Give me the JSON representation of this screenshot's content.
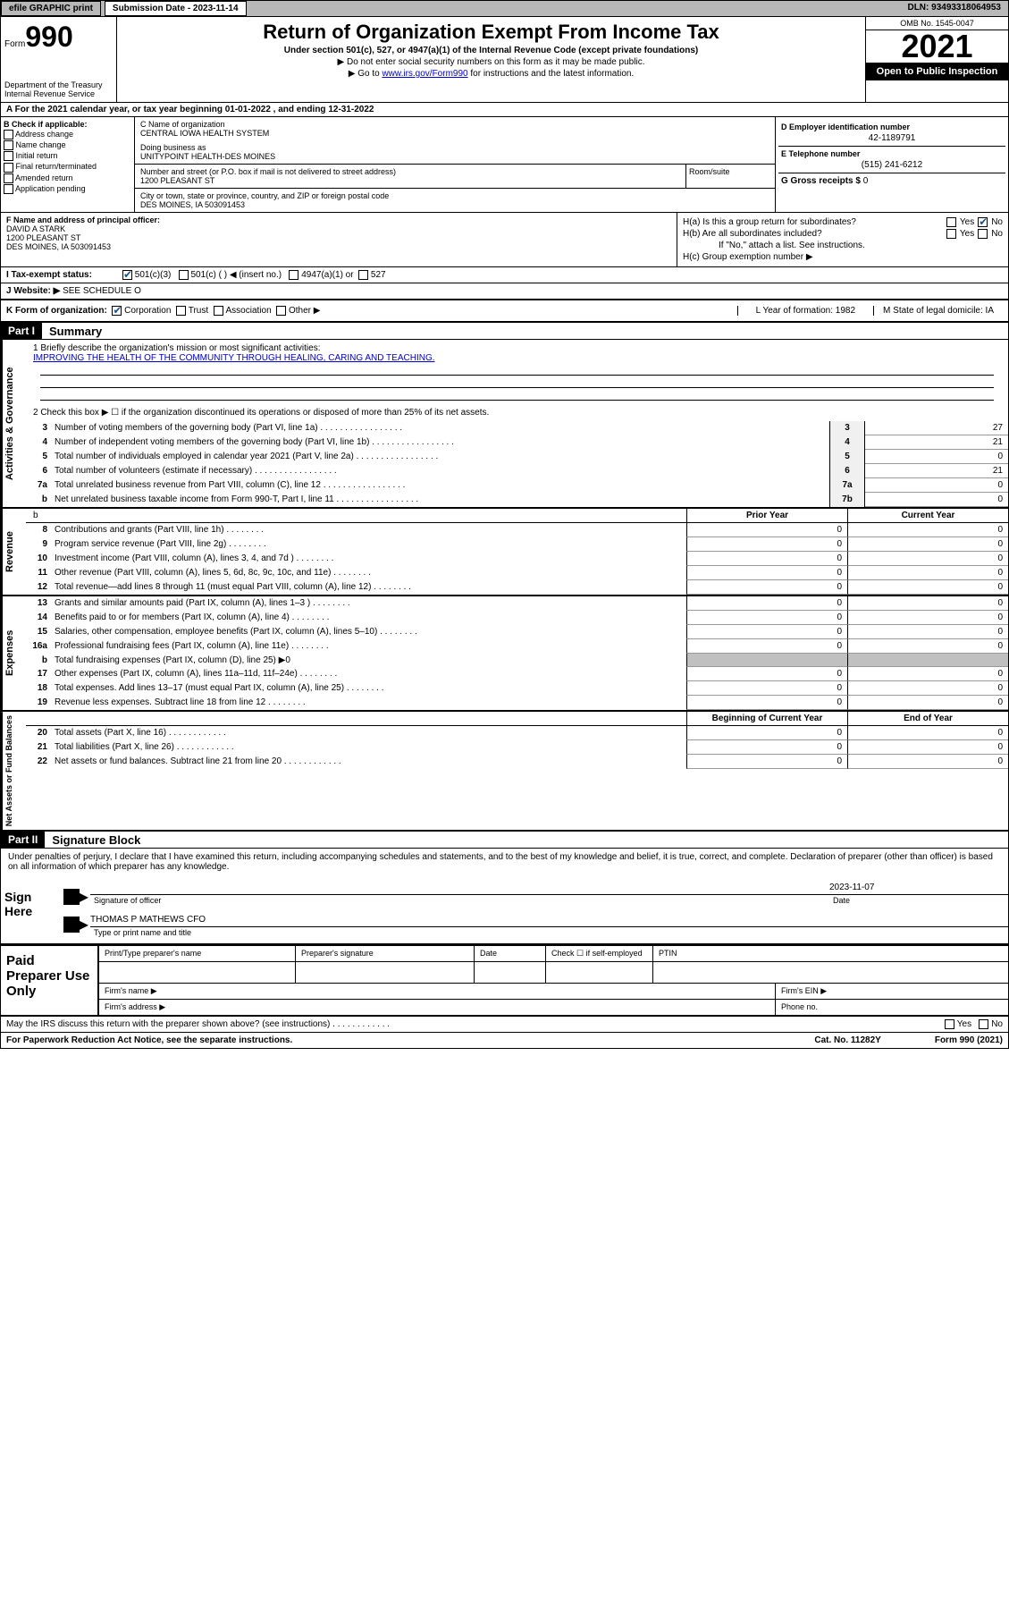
{
  "topbar": {
    "efile": "efile GRAPHIC print",
    "submission": "Submission Date - 2023-11-14",
    "dln": "DLN: 93493318064953"
  },
  "header": {
    "form_prefix": "Form",
    "form_num": "990",
    "dept": "Department of the Treasury",
    "irs": "Internal Revenue Service",
    "title": "Return of Organization Exempt From Income Tax",
    "sub1": "Under section 501(c), 527, or 4947(a)(1) of the Internal Revenue Code (except private foundations)",
    "sub2": "▶ Do not enter social security numbers on this form as it may be made public.",
    "sub3_pre": "▶ Go to ",
    "sub3_link": "www.irs.gov/Form990",
    "sub3_post": " for instructions and the latest information.",
    "omb": "OMB No. 1545-0047",
    "year": "2021",
    "open": "Open to Public Inspection"
  },
  "taxyear": "A For the 2021 calendar year, or tax year beginning 01-01-2022    , and ending 12-31-2022",
  "boxB": {
    "title": "B Check if applicable:",
    "items": [
      "Address change",
      "Name change",
      "Initial return",
      "Final return/terminated",
      "Amended return",
      "Application pending"
    ]
  },
  "boxC": {
    "name_label": "C Name of organization",
    "name": "CENTRAL IOWA HEALTH SYSTEM",
    "dba_label": "Doing business as",
    "dba": "UNITYPOINT HEALTH-DES MOINES",
    "addr_label": "Number and street (or P.O. box if mail is not delivered to street address)",
    "addr": "1200 PLEASANT ST",
    "room_label": "Room/suite",
    "city_label": "City or town, state or province, country, and ZIP or foreign postal code",
    "city": "DES MOINES, IA  503091453"
  },
  "boxD": {
    "label": "D Employer identification number",
    "ein": "42-1189791",
    "phone_label": "E Telephone number",
    "phone": "(515) 241-6212",
    "gross_label": "G Gross receipts $",
    "gross": "0"
  },
  "boxF": {
    "label": "F Name and address of principal officer:",
    "name": "DAVID A STARK",
    "addr1": "1200 PLEASANT ST",
    "addr2": "DES MOINES, IA  503091453"
  },
  "boxH": {
    "ha": "H(a)  Is this a group return for subordinates?",
    "hb": "H(b)  Are all subordinates included?",
    "hb_note": "If \"No,\" attach a list. See instructions.",
    "hc": "H(c)  Group exemption number ▶"
  },
  "rowI": {
    "label": "I   Tax-exempt status:",
    "opt1": "501(c)(3)",
    "opt2": "501(c) (   ) ◀ (insert no.)",
    "opt3": "4947(a)(1) or",
    "opt4": "527"
  },
  "rowJ": {
    "label": "J   Website: ▶",
    "val": "SEE SCHEDULE O"
  },
  "rowK": {
    "label": "K Form of organization:",
    "corp": "Corporation",
    "trust": "Trust",
    "assoc": "Association",
    "other": "Other ▶",
    "L": "L Year of formation: 1982",
    "M": "M State of legal domicile: IA"
  },
  "part1": {
    "header": "Part I",
    "title": "Summary",
    "line1_label": "1   Briefly describe the organization's mission or most significant activities:",
    "line1_text": "IMPROVING THE HEALTH OF THE COMMUNITY THROUGH HEALING, CARING AND TEACHING.",
    "line2": "2    Check this box ▶ ☐  if the organization discontinued its operations or disposed of more than 25% of its net assets.",
    "vert1": "Activities & Governance",
    "vert2": "Revenue",
    "vert3": "Expenses",
    "vert4": "Net Assets or Fund Balances",
    "prior": "Prior Year",
    "current": "Current Year",
    "begin": "Beginning of Current Year",
    "end": "End of Year"
  },
  "lines_gov": [
    {
      "n": "3",
      "d": "Number of voting members of the governing body (Part VI, line 1a)",
      "box": "3",
      "v": "27"
    },
    {
      "n": "4",
      "d": "Number of independent voting members of the governing body (Part VI, line 1b)",
      "box": "4",
      "v": "21"
    },
    {
      "n": "5",
      "d": "Total number of individuals employed in calendar year 2021 (Part V, line 2a)",
      "box": "5",
      "v": "0"
    },
    {
      "n": "6",
      "d": "Total number of volunteers (estimate if necessary)",
      "box": "6",
      "v": "21"
    },
    {
      "n": "7a",
      "d": "Total unrelated business revenue from Part VIII, column (C), line 12",
      "box": "7a",
      "v": "0"
    },
    {
      "n": "b",
      "d": "Net unrelated business taxable income from Form 990-T, Part I, line 11",
      "box": "7b",
      "v": "0"
    }
  ],
  "lines_rev": [
    {
      "n": "8",
      "d": "Contributions and grants (Part VIII, line 1h)",
      "v1": "0",
      "v2": "0"
    },
    {
      "n": "9",
      "d": "Program service revenue (Part VIII, line 2g)",
      "v1": "0",
      "v2": "0"
    },
    {
      "n": "10",
      "d": "Investment income (Part VIII, column (A), lines 3, 4, and 7d )",
      "v1": "0",
      "v2": "0"
    },
    {
      "n": "11",
      "d": "Other revenue (Part VIII, column (A), lines 5, 6d, 8c, 9c, 10c, and 11e)",
      "v1": "0",
      "v2": "0"
    },
    {
      "n": "12",
      "d": "Total revenue—add lines 8 through 11 (must equal Part VIII, column (A), line 12)",
      "v1": "0",
      "v2": "0"
    }
  ],
  "lines_exp": [
    {
      "n": "13",
      "d": "Grants and similar amounts paid (Part IX, column (A), lines 1–3 )",
      "v1": "0",
      "v2": "0"
    },
    {
      "n": "14",
      "d": "Benefits paid to or for members (Part IX, column (A), line 4)",
      "v1": "0",
      "v2": "0"
    },
    {
      "n": "15",
      "d": "Salaries, other compensation, employee benefits (Part IX, column (A), lines 5–10)",
      "v1": "0",
      "v2": "0"
    },
    {
      "n": "16a",
      "d": "Professional fundraising fees (Part IX, column (A), line 11e)",
      "v1": "0",
      "v2": "0"
    },
    {
      "n": "b",
      "d": "Total fundraising expenses (Part IX, column (D), line 25) ▶0",
      "v1": "",
      "v2": ""
    },
    {
      "n": "17",
      "d": "Other expenses (Part IX, column (A), lines 11a–11d, 11f–24e)",
      "v1": "0",
      "v2": "0"
    },
    {
      "n": "18",
      "d": "Total expenses. Add lines 13–17 (must equal Part IX, column (A), line 25)",
      "v1": "0",
      "v2": "0"
    },
    {
      "n": "19",
      "d": "Revenue less expenses. Subtract line 18 from line 12",
      "v1": "0",
      "v2": "0"
    }
  ],
  "lines_net": [
    {
      "n": "20",
      "d": "Total assets (Part X, line 16)",
      "v1": "0",
      "v2": "0"
    },
    {
      "n": "21",
      "d": "Total liabilities (Part X, line 26)",
      "v1": "0",
      "v2": "0"
    },
    {
      "n": "22",
      "d": "Net assets or fund balances. Subtract line 21 from line 20",
      "v1": "0",
      "v2": "0"
    }
  ],
  "part2": {
    "header": "Part II",
    "title": "Signature Block",
    "decl": "Under penalties of perjury, I declare that I have examined this return, including accompanying schedules and statements, and to the best of my knowledge and belief, it is true, correct, and complete. Declaration of preparer (other than officer) is based on all information of which preparer has any knowledge.",
    "sign_here": "Sign Here",
    "sig_officer": "Signature of officer",
    "sig_date": "2023-11-07",
    "date_lbl": "Date",
    "officer_name": "THOMAS P MATHEWS CFO",
    "type_name": "Type or print name and title"
  },
  "paid": {
    "label": "Paid Preparer Use Only",
    "h1": "Print/Type preparer's name",
    "h2": "Preparer's signature",
    "h3": "Date",
    "h4": "Check ☐ if self-employed",
    "h5": "PTIN",
    "firm_name": "Firm's name   ▶",
    "firm_ein": "Firm's EIN ▶",
    "firm_addr": "Firm's address ▶",
    "phone": "Phone no."
  },
  "footer": {
    "may": "May the IRS discuss this return with the preparer shown above? (see instructions)",
    "yes": "Yes",
    "no": "No",
    "paperwork": "For Paperwork Reduction Act Notice, see the separate instructions.",
    "cat": "Cat. No. 11282Y",
    "form": "Form 990 (2021)"
  }
}
